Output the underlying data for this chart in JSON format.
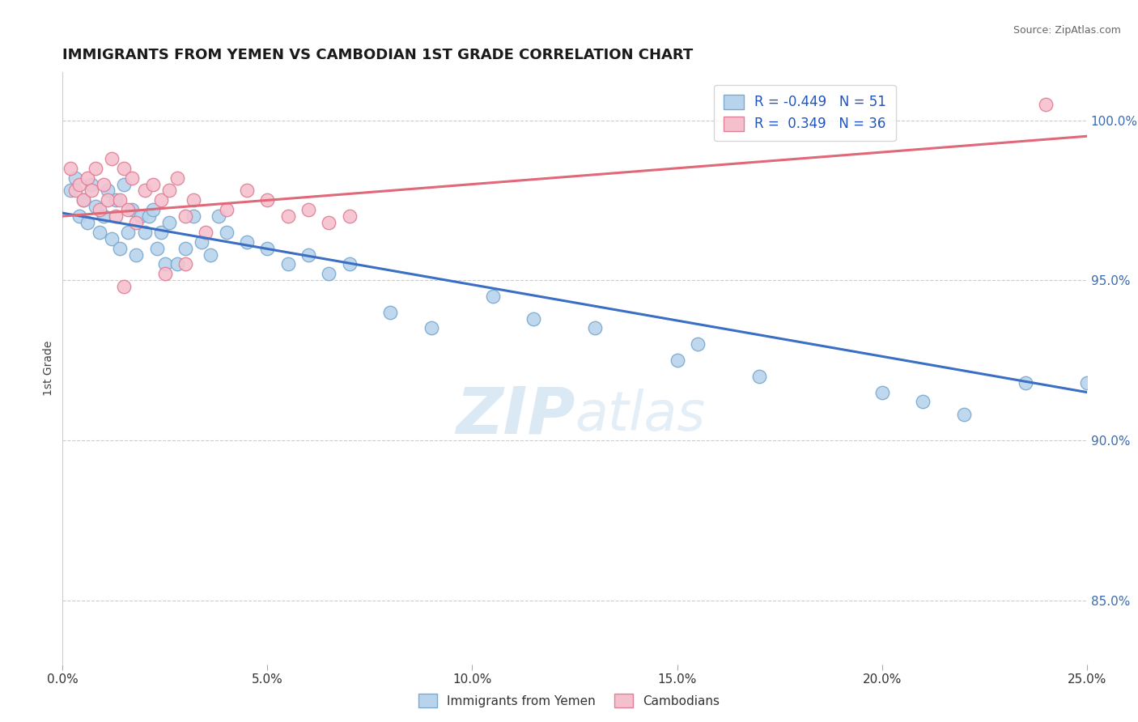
{
  "title": "IMMIGRANTS FROM YEMEN VS CAMBODIAN 1ST GRADE CORRELATION CHART",
  "source": "Source: ZipAtlas.com",
  "xlabel": "",
  "ylabel": "1st Grade",
  "xmin": 0.0,
  "xmax": 25.0,
  "ymin": 83.0,
  "ymax": 101.5,
  "yticks": [
    85.0,
    90.0,
    95.0,
    100.0
  ],
  "xticks": [
    0.0,
    5.0,
    10.0,
    15.0,
    20.0,
    25.0
  ],
  "xtick_labels": [
    "0.0%",
    "5.0%",
    "10.0%",
    "15.0%",
    "20.0%",
    "25.0%"
  ],
  "ytick_labels": [
    "85.0%",
    "90.0%",
    "95.0%",
    "100.0%"
  ],
  "blue_R": -0.449,
  "blue_N": 51,
  "pink_R": 0.349,
  "pink_N": 36,
  "blue_color": "#b8d4ed",
  "blue_edge": "#7aaad0",
  "pink_color": "#f5c0ce",
  "pink_edge": "#e08098",
  "blue_line_color": "#3a6fc4",
  "pink_line_color": "#e06878",
  "watermark_color": "#cde0f0",
  "legend_label_blue": "Immigrants from Yemen",
  "legend_label_pink": "Cambodians",
  "blue_line_x0": 0.0,
  "blue_line_y0": 97.1,
  "blue_line_x1": 25.0,
  "blue_line_y1": 91.5,
  "pink_line_x0": 0.0,
  "pink_line_y0": 97.0,
  "pink_line_x1": 25.0,
  "pink_line_y1": 99.5,
  "blue_points_x": [
    0.2,
    0.3,
    0.4,
    0.5,
    0.6,
    0.7,
    0.8,
    0.9,
    1.0,
    1.1,
    1.2,
    1.3,
    1.4,
    1.5,
    1.6,
    1.7,
    1.8,
    1.9,
    2.0,
    2.1,
    2.2,
    2.3,
    2.4,
    2.5,
    2.6,
    2.8,
    3.0,
    3.2,
    3.4,
    3.6,
    3.8,
    4.0,
    4.5,
    5.0,
    5.5,
    6.0,
    6.5,
    7.0,
    8.0,
    9.0,
    10.5,
    11.5,
    13.0,
    15.0,
    15.5,
    17.0,
    20.0,
    21.0,
    22.0,
    23.5,
    25.0
  ],
  "blue_points_y": [
    97.8,
    98.2,
    97.0,
    97.5,
    96.8,
    98.0,
    97.3,
    96.5,
    97.0,
    97.8,
    96.3,
    97.5,
    96.0,
    98.0,
    96.5,
    97.2,
    95.8,
    97.0,
    96.5,
    97.0,
    97.2,
    96.0,
    96.5,
    95.5,
    96.8,
    95.5,
    96.0,
    97.0,
    96.2,
    95.8,
    97.0,
    96.5,
    96.2,
    96.0,
    95.5,
    95.8,
    95.2,
    95.5,
    94.0,
    93.5,
    94.5,
    93.8,
    93.5,
    92.5,
    93.0,
    92.0,
    91.5,
    91.2,
    90.8,
    91.8,
    91.8
  ],
  "pink_points_x": [
    0.2,
    0.3,
    0.4,
    0.5,
    0.6,
    0.7,
    0.8,
    0.9,
    1.0,
    1.1,
    1.2,
    1.3,
    1.4,
    1.5,
    1.6,
    1.7,
    1.8,
    2.0,
    2.2,
    2.4,
    2.6,
    2.8,
    3.0,
    3.2,
    3.5,
    4.0,
    4.5,
    5.0,
    5.5,
    6.0,
    6.5,
    7.0,
    3.0,
    2.5,
    1.5,
    24.0
  ],
  "pink_points_y": [
    98.5,
    97.8,
    98.0,
    97.5,
    98.2,
    97.8,
    98.5,
    97.2,
    98.0,
    97.5,
    98.8,
    97.0,
    97.5,
    98.5,
    97.2,
    98.2,
    96.8,
    97.8,
    98.0,
    97.5,
    97.8,
    98.2,
    97.0,
    97.5,
    96.5,
    97.2,
    97.8,
    97.5,
    97.0,
    97.2,
    96.8,
    97.0,
    95.5,
    95.2,
    94.8,
    100.5
  ]
}
